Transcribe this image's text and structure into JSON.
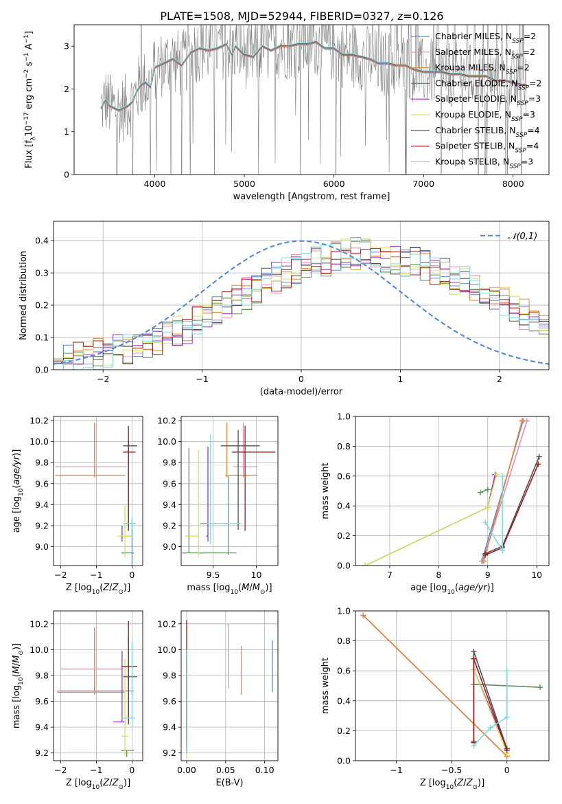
{
  "figure": {
    "title": "PLATE=1508, MJD=52944, FIBERID=0327, z=0.126"
  },
  "styles": {
    "colors": {
      "chabrier_miles": "#5b8bd8",
      "salpeter_miles": "#e98bb0",
      "kroupa_miles": "#e8873a",
      "chabrier_elodie": "#5e8f5e",
      "salpeter_elodie": "#9b2fc0",
      "kroupa_elodie": "#cfe65b",
      "chabrier_stelib": "#505050",
      "salpeter_stelib": "#a01c1c",
      "kroupa_stelib": "#7ddbdb",
      "grey": "#7f7f7f",
      "normal": "#5b8bd8"
    }
  },
  "chart_data": [
    {
      "id": "spectrum",
      "type": "line",
      "xlabel": "wavelength [Angstrom, rest frame]",
      "ylabel": "Flux [f_λ 10^-17 erg cm^-2 s^-1 A^-1]",
      "xlim": [
        3100,
        8400
      ],
      "ylim": [
        0,
        3.5
      ],
      "xticks": [
        4000,
        5000,
        6000,
        7000,
        8000
      ],
      "yticks": [
        0,
        1,
        2,
        3
      ],
      "legend_position": "upper right",
      "grid": false,
      "legend": [
        {
          "key": "chabrier_miles",
          "name": "Chabrier MILES",
          "nssp": "2"
        },
        {
          "key": "salpeter_miles",
          "name": "Salpeter MILES",
          "nssp": "2"
        },
        {
          "key": "kroupa_miles",
          "name": "Kroupa MILES",
          "nssp": "2"
        },
        {
          "key": "chabrier_elodie",
          "name": "Chabrier ELODIE",
          "nssp": "2"
        },
        {
          "key": "salpeter_elodie",
          "name": "Salpeter ELODIE",
          "nssp": "3"
        },
        {
          "key": "kroupa_elodie",
          "name": "Kroupa ELODIE",
          "nssp": "3"
        },
        {
          "key": "chabrier_stelib",
          "name": "Chabrier STELIB",
          "nssp": "4"
        },
        {
          "key": "salpeter_stelib",
          "name": "Salpeter STELIB",
          "nssp": "4"
        },
        {
          "key": "kroupa_stelib",
          "name": "Kroupa STELIB",
          "nssp": "3"
        }
      ],
      "model_x": [
        3400,
        3450,
        3500,
        3600,
        3700,
        3750,
        3800,
        3850,
        3900,
        3950,
        4000,
        4100,
        4200,
        4300,
        4400,
        4500,
        4600,
        4700,
        4800,
        4860,
        4900,
        5000,
        5100,
        5200,
        5300,
        5400,
        5500,
        5600,
        5700,
        5800,
        5900,
        6000,
        6100,
        6200,
        6300,
        6400,
        6500,
        6600,
        6700,
        6800,
        6900,
        7000,
        7100,
        7200,
        7300,
        7400,
        7500,
        7600,
        7700,
        7800,
        7900,
        8000,
        8100,
        8150
      ],
      "model_y": [
        1.55,
        1.75,
        1.6,
        1.5,
        1.6,
        1.7,
        1.95,
        2.1,
        2.15,
        2.05,
        2.5,
        2.6,
        2.7,
        2.55,
        2.85,
        2.95,
        2.9,
        2.95,
        3.05,
        2.8,
        3.0,
        2.8,
        2.75,
        3.0,
        2.9,
        3.0,
        3.0,
        3.05,
        3.05,
        3.1,
        2.95,
        2.95,
        2.8,
        2.8,
        2.75,
        2.7,
        2.6,
        2.6,
        2.55,
        2.55,
        2.45,
        2.4,
        2.4,
        2.4,
        2.35,
        2.35,
        2.3,
        2.3,
        2.3,
        2.2,
        2.2,
        2.15,
        2.1,
        2.1
      ]
    },
    {
      "id": "residuals",
      "type": "line",
      "xlabel": "(data-model)/error",
      "ylabel": "Normed distribution",
      "xlim": [
        -2.5,
        2.5
      ],
      "ylim": [
        0,
        0.46
      ],
      "xticks": [
        -2,
        -1,
        0,
        1,
        2
      ],
      "yticks": [
        0.0,
        0.1,
        0.2,
        0.3,
        0.4
      ],
      "grid": true,
      "legend_position": "upper right",
      "gaussian_label": "𝒩(0,1)",
      "bin_width": 0.1,
      "bin_start": -2.5,
      "base_hist": [
        0.02,
        0.03,
        0.04,
        0.045,
        0.05,
        0.055,
        0.06,
        0.065,
        0.075,
        0.085,
        0.09,
        0.105,
        0.12,
        0.13,
        0.15,
        0.165,
        0.18,
        0.2,
        0.215,
        0.235,
        0.25,
        0.27,
        0.285,
        0.3,
        0.31,
        0.32,
        0.33,
        0.34,
        0.35,
        0.355,
        0.36,
        0.36,
        0.35,
        0.345,
        0.34,
        0.335,
        0.33,
        0.32,
        0.31,
        0.3,
        0.28,
        0.27,
        0.26,
        0.245,
        0.23,
        0.21,
        0.19,
        0.17,
        0.15,
        0.13,
        0.115,
        0.1,
        0.09,
        0.085,
        0.075,
        0.07,
        0.065,
        0.06,
        0.055,
        0.05,
        0.045,
        0.04,
        0.035,
        0.03,
        0.03,
        0.03,
        0.03,
        0.03,
        0.03,
        0.03
      ]
    },
    {
      "id": "age_vs_Z",
      "type": "scatter",
      "xlabel": "Z [log10(Z/Z_sun)]",
      "ylabel": "age  [log10(age/yr)]",
      "xlim": [
        -2.2,
        0.3
      ],
      "ylim": [
        8.82,
        10.24
      ],
      "xticks": [
        -2,
        -1,
        0
      ],
      "yticks": [
        9.0,
        9.2,
        9.4,
        9.6,
        9.8,
        10.0,
        10.2
      ],
      "grid": true,
      "points": [
        {
          "key": "chabrier_miles",
          "x": 0.0,
          "y": 9.22,
          "xerr": [
            0.2,
            0.1
          ],
          "yerr": [
            0.6,
            0.05
          ]
        },
        {
          "key": "salpeter_miles",
          "x": -1.05,
          "y": 9.76,
          "xerr": [
            1.1,
            0.9
          ],
          "yerr": [
            0.1,
            0.42
          ]
        },
        {
          "key": "kroupa_miles",
          "x": -1.05,
          "y": 9.68,
          "xerr": [
            1.1,
            0.85
          ],
          "yerr": [
            0.02,
            0.5
          ]
        },
        {
          "key": "chabrier_elodie",
          "x": -0.15,
          "y": 8.94,
          "xerr": [
            0.15,
            0.2
          ],
          "yerr": [
            0.0,
            0.0
          ]
        },
        {
          "key": "salpeter_elodie",
          "x": -0.28,
          "y": 9.1,
          "xerr": [
            0.05,
            0.05
          ],
          "yerr": [
            0.05,
            0.1
          ]
        },
        {
          "key": "kroupa_elodie",
          "x": -0.2,
          "y": 9.1,
          "xerr": [
            0.2,
            0.2
          ],
          "yerr": [
            0.2,
            0.3
          ]
        },
        {
          "key": "chabrier_stelib",
          "x": -0.1,
          "y": 9.96,
          "xerr": [
            0.15,
            0.25
          ],
          "yerr": [
            0.8,
            0.05
          ]
        },
        {
          "key": "salpeter_stelib",
          "x": -0.1,
          "y": 9.9,
          "xerr": [
            0.15,
            0.2
          ],
          "yerr": [
            0.75,
            0.25
          ]
        },
        {
          "key": "kroupa_stelib",
          "x": 0.0,
          "y": 9.22,
          "xerr": [
            0.25,
            0.1
          ],
          "yerr": [
            0.05,
            0.05
          ]
        }
      ]
    },
    {
      "id": "age_vs_mass",
      "type": "scatter",
      "xlabel": "mass [log10(M/M_sun)]",
      "ylabel": "",
      "xlim": [
        9.13,
        10.25
      ],
      "ylim": [
        8.82,
        10.24
      ],
      "xticks": [
        9.5,
        10.0
      ],
      "yticks": [
        9.0,
        9.2,
        9.4,
        9.6,
        9.8,
        10.0,
        10.2
      ],
      "grid": true,
      "points": [
        {
          "key": "chabrier_miles",
          "x": 9.68,
          "y": 9.22,
          "xerr": [
            0.33,
            0.0
          ],
          "yerr": [
            0.3,
            0.45
          ]
        },
        {
          "key": "salpeter_miles",
          "x": 9.85,
          "y": 9.76,
          "xerr": [
            0.12,
            0.16
          ],
          "yerr": [
            0.1,
            0.42
          ]
        },
        {
          "key": "kroupa_miles",
          "x": 9.66,
          "y": 9.68,
          "xerr": [
            0.02,
            0.35
          ],
          "yerr": [
            0.02,
            0.5
          ]
        },
        {
          "key": "chabrier_elodie",
          "x": 9.22,
          "y": 8.94,
          "xerr": [
            0.08,
            0.55
          ],
          "yerr": [
            0.0,
            1.0
          ]
        },
        {
          "key": "salpeter_elodie",
          "x": 9.44,
          "y": 9.1,
          "xerr": [
            0.02,
            0.0
          ],
          "yerr": [
            0.05,
            0.85
          ]
        },
        {
          "key": "kroupa_elodie",
          "x": 9.33,
          "y": 9.1,
          "xerr": [
            0.15,
            0.0
          ],
          "yerr": [
            0.2,
            0.82
          ]
        },
        {
          "key": "chabrier_stelib",
          "x": 9.79,
          "y": 9.96,
          "xerr": [
            0.2,
            0.25
          ],
          "yerr": [
            0.8,
            0.15
          ]
        },
        {
          "key": "salpeter_stelib",
          "x": 9.87,
          "y": 9.9,
          "xerr": [
            0.15,
            0.35
          ],
          "yerr": [
            0.75,
            0.25
          ]
        },
        {
          "key": "kroupa_stelib",
          "x": 9.47,
          "y": 9.22,
          "xerr": [
            0.05,
            0.35
          ],
          "yerr": [
            0.2,
            0.85
          ]
        }
      ]
    },
    {
      "id": "weight_vs_age",
      "type": "line",
      "xlabel": "age  [log10(age/yr)]",
      "ylabel": "mass weight",
      "xlim": [
        6.3,
        10.25
      ],
      "ylim": [
        0,
        1
      ],
      "xticks": [
        7,
        8,
        9,
        10
      ],
      "yticks": [
        0.0,
        0.2,
        0.4,
        0.6,
        0.8,
        1.0
      ],
      "grid": true,
      "series": [
        {
          "key": "chabrier_miles",
          "x": [
            8.88,
            9.72
          ],
          "y": [
            0.03,
            0.97
          ]
        },
        {
          "key": "salpeter_miles",
          "x": [
            8.9,
            9.8
          ],
          "y": [
            0.03,
            0.97
          ]
        },
        {
          "key": "kroupa_miles",
          "x": [
            8.92,
            9.7
          ],
          "y": [
            0.03,
            0.97
          ]
        },
        {
          "key": "chabrier_elodie",
          "x": [
            8.85,
            9.0
          ],
          "y": [
            0.49,
            0.51
          ]
        },
        {
          "key": "salpeter_elodie",
          "x": [
            6.5,
            9.0,
            9.15
          ],
          "y": [
            0.0,
            0.39,
            0.61
          ]
        },
        {
          "key": "kroupa_elodie",
          "x": [
            6.5,
            9.0,
            9.18
          ],
          "y": [
            0.0,
            0.39,
            0.61
          ]
        },
        {
          "key": "chabrier_stelib",
          "x": [
            8.95,
            9.3,
            10.05
          ],
          "y": [
            0.08,
            0.13,
            0.73
          ]
        },
        {
          "key": "salpeter_stelib",
          "x": [
            8.95,
            9.3,
            10.03
          ],
          "y": [
            0.07,
            0.12,
            0.68
          ]
        },
        {
          "key": "kroupa_stelib",
          "x": [
            8.95,
            9.3,
            9.3,
            9.3
          ],
          "y": [
            0.29,
            0.1,
            0.1,
            0.6
          ]
        }
      ]
    },
    {
      "id": "mass_vs_Z",
      "type": "scatter",
      "xlabel": "Z [log10(Z/Z_sun)]",
      "ylabel": "mass [log10(M/M_sun)]",
      "xlim": [
        -2.2,
        0.3
      ],
      "ylim": [
        9.14,
        10.3
      ],
      "xticks": [
        -2,
        -1,
        0
      ],
      "yticks": [
        9.2,
        9.4,
        9.6,
        9.8,
        10.0,
        10.2
      ],
      "grid": true,
      "points": [
        {
          "key": "chabrier_miles",
          "x": 0.0,
          "y": 9.68,
          "xerr": [
            2.1,
            0.05
          ],
          "yerr": [
            0.03,
            0.0
          ]
        },
        {
          "key": "salpeter_miles",
          "x": -1.05,
          "y": 9.85,
          "xerr": [
            0.95,
            0.8
          ],
          "yerr": [
            0.15,
            0.32
          ]
        },
        {
          "key": "kroupa_miles",
          "x": -1.05,
          "y": 9.67,
          "xerr": [
            1.05,
            0.85
          ],
          "yerr": [
            0.02,
            0.5
          ]
        },
        {
          "key": "chabrier_elodie",
          "x": -0.15,
          "y": 9.22,
          "xerr": [
            0.15,
            0.2
          ],
          "yerr": [
            0.05,
            0.0
          ]
        },
        {
          "key": "salpeter_elodie",
          "x": -0.28,
          "y": 9.44,
          "xerr": [
            0.25,
            0.1
          ],
          "yerr": [
            0.0,
            0.55
          ]
        },
        {
          "key": "kroupa_elodie",
          "x": -0.2,
          "y": 9.33,
          "xerr": [
            0.1,
            0.1
          ],
          "yerr": [
            0.15,
            0.6
          ]
        },
        {
          "key": "chabrier_stelib",
          "x": -0.1,
          "y": 9.79,
          "xerr": [
            0.15,
            0.25
          ],
          "yerr": [
            0.35,
            0.3
          ]
        },
        {
          "key": "salpeter_stelib",
          "x": -0.1,
          "y": 9.87,
          "xerr": [
            0.2,
            0.25
          ],
          "yerr": [
            0.45,
            0.35
          ]
        },
        {
          "key": "kroupa_stelib",
          "x": 0.0,
          "y": 9.47,
          "xerr": [
            0.3,
            0.1
          ],
          "yerr": [
            0.05,
            0.6
          ]
        }
      ]
    },
    {
      "id": "mass_vs_EBV",
      "type": "scatter",
      "xlabel": "E(B-V)",
      "ylabel": "",
      "xlim": [
        -0.007,
        0.117
      ],
      "ylim": [
        9.14,
        10.3
      ],
      "xticks": [
        0.0,
        0.05,
        0.1
      ],
      "xticklabels": [
        "0.00",
        "0.05",
        "0.10"
      ],
      "yticks": [
        9.2,
        9.4,
        9.6,
        9.8,
        10.0,
        10.2
      ],
      "grid": true,
      "points": [
        {
          "key": "chabrier_miles",
          "x": 0.11,
          "y": 9.87,
          "xerr": [
            0,
            0
          ],
          "yerr": [
            0.2,
            0.2
          ]
        },
        {
          "key": "salpeter_miles",
          "x": 0.054,
          "y": 9.9,
          "xerr": [
            0,
            0
          ],
          "yerr": [
            0.2,
            0.3
          ]
        },
        {
          "key": "kroupa_miles",
          "x": 0.07,
          "y": 9.85,
          "xerr": [
            0,
            0
          ],
          "yerr": [
            0.2,
            0.18
          ]
        },
        {
          "key": "chabrier_elodie",
          "x": 0.0,
          "y": 9.5,
          "xerr": [
            0,
            0
          ],
          "yerr": [
            0.3,
            0.4
          ]
        },
        {
          "key": "salpeter_elodie",
          "x": 0.0,
          "y": 9.6,
          "xerr": [
            0,
            0
          ],
          "yerr": [
            0.4,
            0.4
          ]
        },
        {
          "key": "kroupa_elodie",
          "x": 0.0,
          "y": 9.5,
          "xerr": [
            0,
            0
          ],
          "yerr": [
            0.33,
            0.5
          ]
        },
        {
          "key": "chabrier_stelib",
          "x": 0.0,
          "y": 9.7,
          "xerr": [
            0,
            0
          ],
          "yerr": [
            0.4,
            0.3
          ]
        },
        {
          "key": "salpeter_stelib",
          "x": 0.0,
          "y": 9.8,
          "xerr": [
            0,
            0
          ],
          "yerr": [
            0.55,
            0.43
          ]
        },
        {
          "key": "kroupa_stelib",
          "x": 0.0,
          "y": 9.6,
          "xerr": [
            0,
            0
          ],
          "yerr": [
            0.4,
            0.4
          ]
        }
      ]
    },
    {
      "id": "weight_vs_Z",
      "type": "line",
      "xlabel": "Z [log10(Z/Z_sun)]",
      "ylabel": "mass weight",
      "xlim": [
        -1.37,
        0.38
      ],
      "ylim": [
        0,
        1
      ],
      "xticks": [
        -1.0,
        -0.5,
        0.0
      ],
      "yticks": [
        0.0,
        0.2,
        0.4,
        0.6,
        0.8,
        1.0
      ],
      "grid": true,
      "series": [
        {
          "key": "chabrier_miles",
          "x": [
            -1.3,
            0.0
          ],
          "y": [
            0.97,
            0.03
          ]
        },
        {
          "key": "salpeter_miles",
          "x": [
            -1.3,
            0.0
          ],
          "y": [
            0.97,
            0.03
          ]
        },
        {
          "key": "kroupa_miles",
          "x": [
            -1.3,
            0.0
          ],
          "y": [
            0.97,
            0.03
          ]
        },
        {
          "key": "chabrier_elodie",
          "x": [
            -0.3,
            0.3
          ],
          "y": [
            0.51,
            0.49
          ]
        },
        {
          "key": "salpeter_elodie",
          "x": [
            -0.3,
            0.0
          ],
          "y": [
            0.61,
            0.08
          ]
        },
        {
          "key": "kroupa_elodie",
          "x": [
            -0.3,
            0.0
          ],
          "y": [
            0.61,
            0.05
          ]
        },
        {
          "key": "chabrier_stelib",
          "x": [
            -0.3,
            -0.3,
            0.0
          ],
          "y": [
            0.13,
            0.73,
            0.08
          ]
        },
        {
          "key": "salpeter_stelib",
          "x": [
            -0.3,
            -0.3,
            0.0
          ],
          "y": [
            0.12,
            0.68,
            0.07
          ]
        },
        {
          "key": "kroupa_stelib",
          "x": [
            -0.3,
            -0.15,
            0.0,
            0.0
          ],
          "y": [
            0.1,
            0.22,
            0.29,
            0.6
          ]
        }
      ]
    }
  ]
}
